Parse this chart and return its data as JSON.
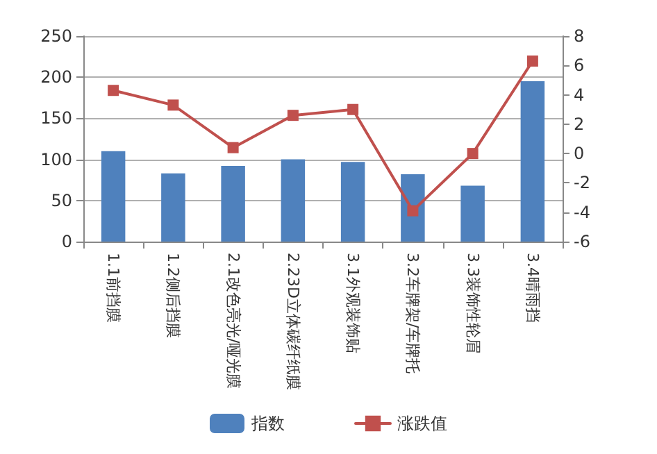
{
  "chart_data": {
    "type": "bar",
    "categories": [
      "1.1前挡膜",
      "1.2侧后挡膜",
      "2.1改色亮光/哑光膜",
      "2.23D立体碳纤纸膜",
      "3.1外观装饰贴",
      "3.2车牌架/车牌托",
      "3.3装饰性轮眉",
      "3.4晴雨挡"
    ],
    "series": [
      {
        "name": "指数",
        "color": "#4f81bd",
        "values": [
          110,
          83,
          92,
          100,
          97,
          82,
          68,
          195
        ]
      },
      {
        "name": "涨跌值",
        "type": "line",
        "axis": "y2",
        "color": "#c0504d",
        "values": [
          4.3,
          3.3,
          0.4,
          2.6,
          3.0,
          -3.9,
          0.0,
          6.3
        ]
      }
    ],
    "ylim": [
      0,
      250
    ],
    "yticks": [
      0,
      50,
      100,
      150,
      200,
      250
    ],
    "y2lim": [
      -6,
      8
    ],
    "y2ticks": [
      -6,
      -4,
      -2,
      0,
      2,
      4,
      6,
      8
    ],
    "grid": "y",
    "legend": "bottom",
    "marker": "square",
    "line_style": "solid"
  }
}
